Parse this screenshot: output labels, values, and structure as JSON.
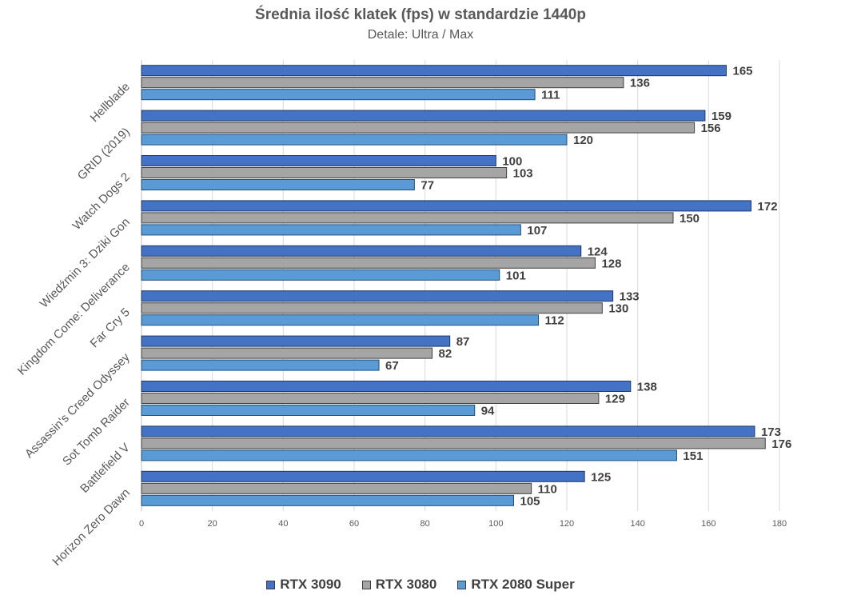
{
  "chart_data": {
    "type": "bar",
    "orientation": "horizontal",
    "title": "Średnia ilość klatek (fps) w standardzie 1440p",
    "subtitle": "Detale: Ultra / Max",
    "categories": [
      "Hellblade",
      "GRID (2019)",
      "Watch Dogs 2",
      "Wiedźmin 3: Dziki Gon",
      "Kingdom Come: Deliverance",
      "Far Cry 5",
      "Assassin's Creed Odyssey",
      "Sot Tomb Raider",
      "Battlefield V",
      "Horizon Zero Dawn"
    ],
    "series": [
      {
        "name": "RTX 3090",
        "color": "#4472c4",
        "values": [
          165,
          159,
          100,
          172,
          124,
          133,
          87,
          138,
          173,
          125
        ]
      },
      {
        "name": "RTX 3080",
        "color": "#a5a5a5",
        "values": [
          136,
          156,
          103,
          150,
          128,
          130,
          82,
          129,
          176,
          110
        ]
      },
      {
        "name": "RTX 2080 Super",
        "color": "#5b9bd5",
        "values": [
          111,
          120,
          77,
          107,
          101,
          112,
          67,
          94,
          151,
          105
        ]
      }
    ],
    "xlim": [
      0,
      180
    ],
    "xticks": [
      0,
      20,
      40,
      60,
      80,
      100,
      120,
      140,
      160,
      180
    ],
    "grid": true,
    "legend_position": "bottom",
    "data_labels": true
  }
}
